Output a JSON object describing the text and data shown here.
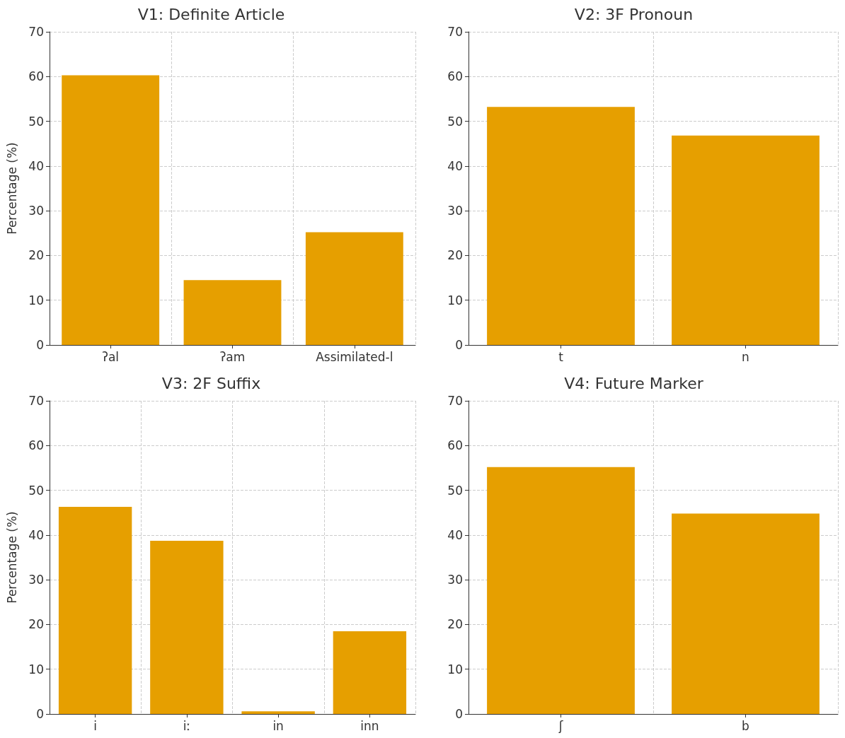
{
  "chart_data": [
    {
      "type": "bar",
      "title": "V1: Definite Article",
      "ylabel": "Percentage (%)",
      "categories": [
        "ʔal",
        "ʔam",
        "Assimilated-l"
      ],
      "values": [
        60.3,
        14.5,
        25.2
      ],
      "color": "#e69f00",
      "ylim": [
        0,
        70
      ],
      "yticks": [
        0,
        10,
        20,
        30,
        40,
        50,
        60,
        70
      ],
      "grid": true
    },
    {
      "type": "bar",
      "title": "V2: 3F Pronoun",
      "categories": [
        "t",
        "n"
      ],
      "values": [
        53.2,
        46.8
      ],
      "color": "#e69f00",
      "ylim": [
        0,
        70
      ],
      "yticks": [
        0,
        10,
        20,
        30,
        40,
        50,
        60,
        70
      ],
      "grid": true
    },
    {
      "type": "bar",
      "title": "V3: 2F Suffix",
      "ylabel": "Percentage (%)",
      "categories": [
        "i",
        "iː",
        "in",
        "inn"
      ],
      "values": [
        46.3,
        38.7,
        0.6,
        18.5
      ],
      "color": "#e69f00",
      "ylim": [
        0,
        70
      ],
      "yticks": [
        0,
        10,
        20,
        30,
        40,
        50,
        60,
        70
      ],
      "grid": true
    },
    {
      "type": "bar",
      "title": "V4: Future Marker",
      "categories": [
        "ʃ",
        "b"
      ],
      "values": [
        55.2,
        44.8
      ],
      "color": "#e69f00",
      "ylim": [
        0,
        70
      ],
      "yticks": [
        0,
        10,
        20,
        30,
        40,
        50,
        60,
        70
      ],
      "grid": true
    }
  ]
}
